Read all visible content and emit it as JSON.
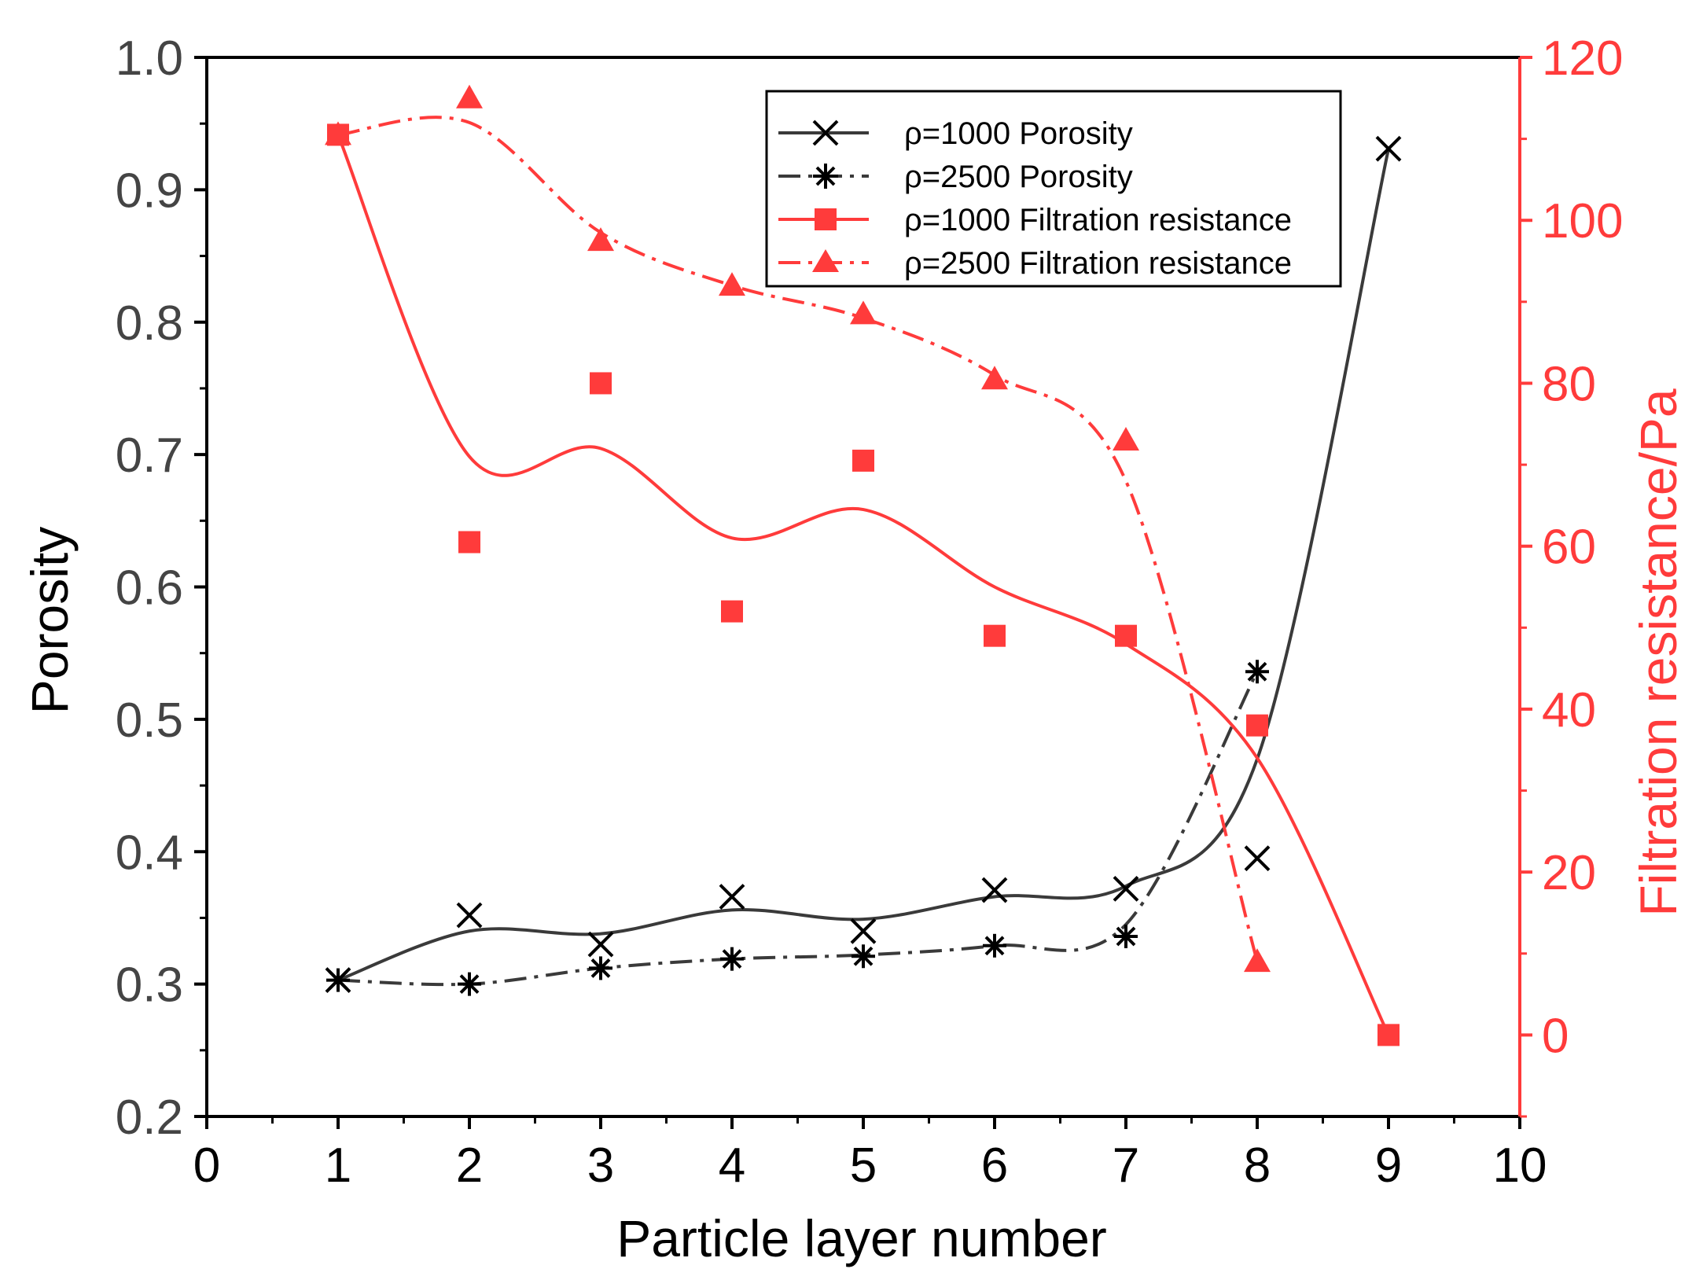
{
  "chart_data": {
    "type": "line",
    "xlabel": "Particle layer number",
    "ylabel": "Porosity",
    "y2label": "Filtration resistance/Pa",
    "xlim": [
      0,
      10
    ],
    "ylim": [
      0.2,
      1.0
    ],
    "y2lim": [
      -10,
      120
    ],
    "x_ticks": [
      "0",
      "1",
      "2",
      "3",
      "4",
      "5",
      "6",
      "7",
      "8",
      "9",
      "10"
    ],
    "y_ticks": [
      "0.2",
      "0.3",
      "0.4",
      "0.5",
      "0.6",
      "0.7",
      "0.8",
      "0.9",
      "1.0"
    ],
    "y2_ticks": [
      "0",
      "20",
      "40",
      "60",
      "80",
      "100",
      "120"
    ],
    "legend_position": "top-right",
    "colors": {
      "porosity": "#3a3a3a",
      "resistance": "#ff3b3b"
    },
    "series": [
      {
        "name": "ρ=1000 Porosity",
        "axis": "left",
        "marker": "x",
        "line": "solid",
        "x": [
          1,
          2,
          3,
          4,
          5,
          6,
          7,
          8,
          9
        ],
        "values": [
          0.303,
          0.352,
          0.33,
          0.366,
          0.34,
          0.371,
          0.372,
          0.395,
          0.931
        ]
      },
      {
        "name": "ρ=2500 Porosity",
        "axis": "left",
        "marker": "asterisk",
        "line": "dashdot",
        "x": [
          1,
          2,
          3,
          4,
          5,
          6,
          7,
          8
        ],
        "values": [
          0.303,
          0.3,
          0.312,
          0.319,
          0.321,
          0.329,
          0.336,
          0.536
        ]
      },
      {
        "name": "ρ=1000 Filtration resistance",
        "axis": "right",
        "marker": "square",
        "line": "solid",
        "x": [
          1,
          2,
          3,
          4,
          5,
          6,
          7,
          8,
          9
        ],
        "values": [
          110.5,
          60.5,
          80,
          52,
          70.5,
          49,
          49,
          38,
          0
        ]
      },
      {
        "name": "ρ=2500 Filtration resistance",
        "axis": "right",
        "marker": "triangle",
        "line": "dashdot",
        "x": [
          1,
          2,
          3,
          4,
          5,
          6,
          7,
          8
        ],
        "values": [
          110.5,
          115,
          97.5,
          92,
          88.5,
          80.5,
          73,
          9
        ]
      }
    ]
  }
}
